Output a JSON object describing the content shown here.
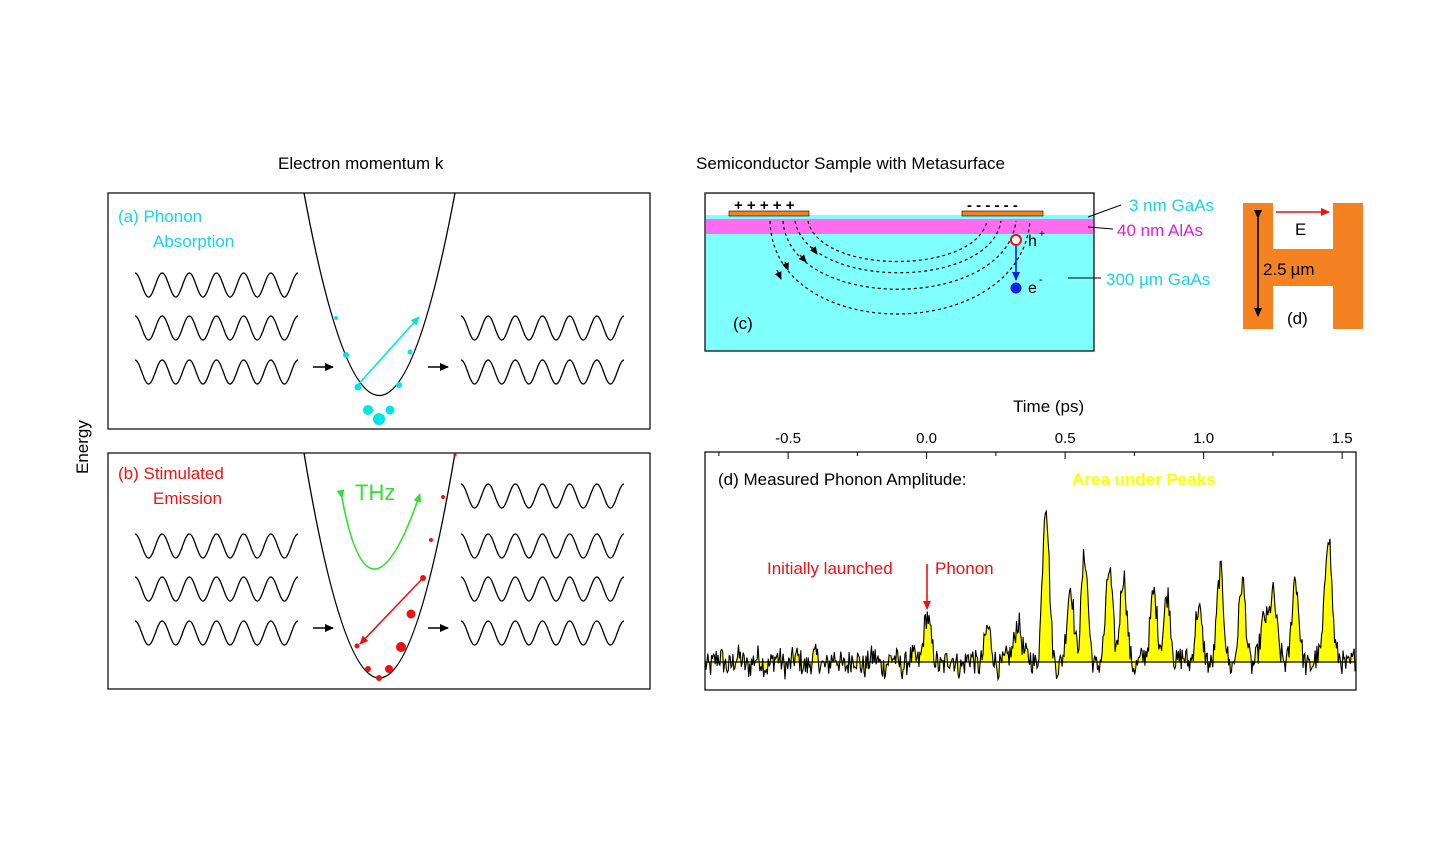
{
  "colors": {
    "cyan": "#00e5e5",
    "cyan_text": "#17d3e8",
    "red": "#ee1111",
    "green": "#33dd33",
    "magenta": "#ff6cf0",
    "substrate": "#80ffff",
    "orange": "#f58220",
    "yellow_fill": "#ffff00",
    "blue": "#1020e8"
  },
  "left": {
    "top_label": "Electron momentum  k",
    "y_label": "Energy",
    "panel_a": {
      "line1": "(a) Phonon",
      "line2": "Absorption"
    },
    "panel_b": {
      "line1": "(b) Stimulated",
      "line2": "Emission",
      "thz": "THz"
    }
  },
  "sample": {
    "title": "Semiconductor Sample with Metasurface",
    "plus_signs": "+ + + + +",
    "minus_signs": "- - - - - -",
    "hole": "h",
    "hole_sup": "+",
    "electron": "e",
    "electron_sup": "-",
    "panel_tag": "(c)",
    "layer1": "3 nm GaAs",
    "layer2": "40 nm AlAs",
    "layer3": "300 µm GaAs"
  },
  "resonator": {
    "field": "E",
    "size_value": "2.5",
    "size_unit": "µm",
    "panel_tag": "(d)"
  },
  "trace": {
    "axis_title": "Time (ps)",
    "ticks": [
      {
        "label": "-0.5",
        "value": -0.5
      },
      {
        "label": "0.0",
        "value": 0.0
      },
      {
        "label": "0.5",
        "value": 0.5
      },
      {
        "label": "1.0",
        "value": 1.0
      },
      {
        "label": "1.5",
        "value": 1.5
      }
    ],
    "title": "(d) Measured Phonon Amplitude:",
    "legend": "Area under Peaks",
    "annotation_left": "Initially launched",
    "annotation_right": "Phonon",
    "x_range": [
      -0.8,
      1.55
    ],
    "peaks": [
      {
        "t": 0.0,
        "amplitude": 0.28
      },
      {
        "t": 0.22,
        "amplitude": 0.18
      },
      {
        "t": 0.33,
        "amplitude": 0.27
      },
      {
        "t": 0.43,
        "amplitude": 0.95
      },
      {
        "t": 0.52,
        "amplitude": 0.45
      },
      {
        "t": 0.57,
        "amplitude": 0.62
      },
      {
        "t": 0.66,
        "amplitude": 0.55
      },
      {
        "t": 0.71,
        "amplitude": 0.5
      },
      {
        "t": 0.82,
        "amplitude": 0.45
      },
      {
        "t": 0.87,
        "amplitude": 0.4
      },
      {
        "t": 0.98,
        "amplitude": 0.32
      },
      {
        "t": 1.06,
        "amplitude": 0.52
      },
      {
        "t": 1.14,
        "amplitude": 0.46
      },
      {
        "t": 1.22,
        "amplitude": 0.25
      },
      {
        "t": 1.25,
        "amplitude": 0.42
      },
      {
        "t": 1.33,
        "amplitude": 0.5
      },
      {
        "t": 1.45,
        "amplitude": 0.82
      }
    ]
  }
}
